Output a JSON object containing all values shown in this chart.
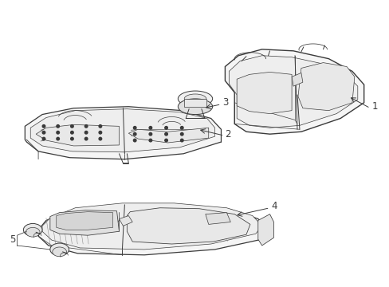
{
  "background_color": "#ffffff",
  "line_color": "#3a3a3a",
  "line_width": 0.7,
  "label_fontsize": 8.5,
  "figsize": [
    4.89,
    3.6
  ],
  "dpi": 100
}
